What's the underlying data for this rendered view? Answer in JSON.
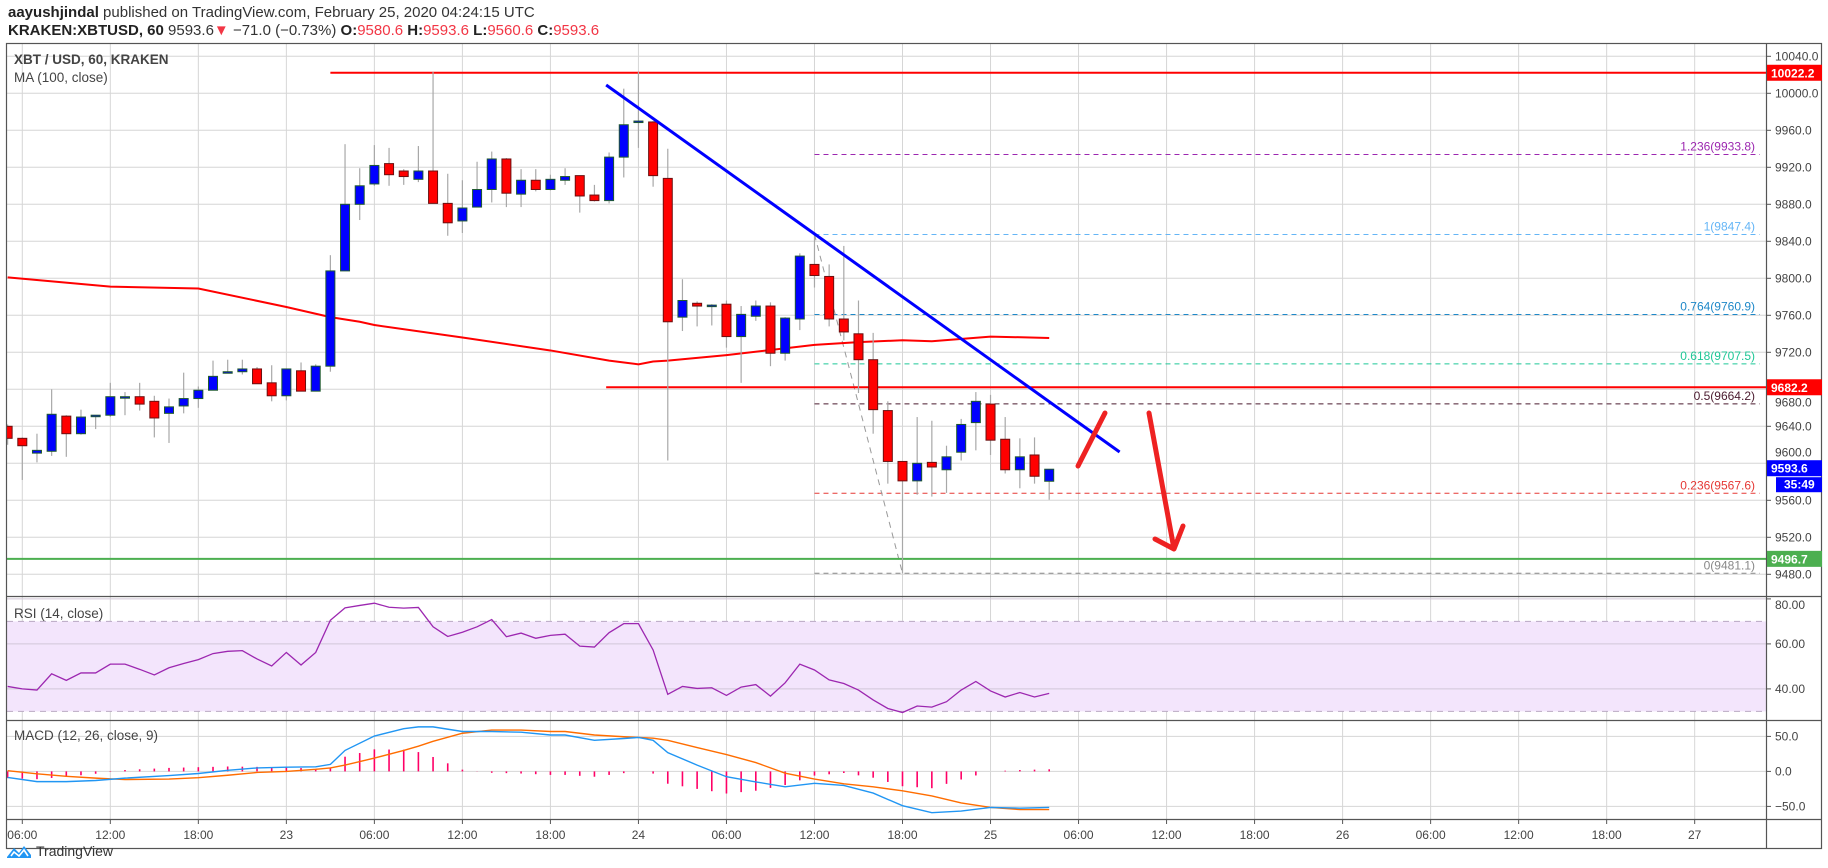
{
  "header": {
    "author": "aayushjindal",
    "published": "published on TradingView.com, February 25, 2020 04:24:15 UTC",
    "symbol": "KRAKEN:XBTUSD, 60",
    "last": "9593.6",
    "change": "−71.0 (−0.73%)",
    "o_label": "O:",
    "o": "9580.6",
    "h_label": "H:",
    "h": "9593.6",
    "l_label": "L:",
    "l": "9560.6",
    "c_label": "C:",
    "c": "9593.6",
    "down_color": "#f23645"
  },
  "legend": {
    "title": "XBT / USD, 60, KRAKEN",
    "ma": "MA (100, close)",
    "rsi": "RSI (14, close)",
    "macd": "MACD (12, 26, close, 9)"
  },
  "branding": {
    "logo_text": "TradingView"
  },
  "chart_data": {
    "type": "candlestick",
    "title": "XBT / USD, 60, KRAKEN",
    "interval_minutes": 60,
    "x_origin": "Feb 22 06:00",
    "first_candle_hour": -1,
    "ylim": [
      9460,
      10050
    ],
    "colors": {
      "up": "#0000ff",
      "down": "#ff0000",
      "ma": "#ff0000",
      "rsi": "#9c27b0",
      "macd": "#2196f3",
      "signal": "#ff6d00",
      "hist": "#ff0066"
    },
    "candles": [
      [
        9640,
        9642,
        9620,
        9627
      ],
      [
        9627,
        9628,
        9582,
        9619
      ],
      [
        9611,
        9632,
        9601,
        9614
      ],
      [
        9613,
        9680,
        9608,
        9653
      ],
      [
        9651,
        9652,
        9607,
        9632
      ],
      [
        9632,
        9658,
        9631,
        9650
      ],
      [
        9652,
        9652,
        9637,
        9652
      ],
      [
        9652,
        9687,
        9650,
        9672
      ],
      [
        9672,
        9677,
        9652,
        9672
      ],
      [
        9672,
        9687,
        9657,
        9664
      ],
      [
        9667,
        9673,
        9628,
        9649
      ],
      [
        9654,
        9670,
        9622,
        9661
      ],
      [
        9662,
        9698,
        9654,
        9670
      ],
      [
        9670,
        9683,
        9660,
        9679
      ],
      [
        9679,
        9711,
        9679,
        9694
      ],
      [
        9699,
        9712,
        9699,
        9699
      ],
      [
        9699,
        9712,
        9696,
        9702
      ],
      [
        9702,
        9704,
        9686,
        9686
      ],
      [
        9687,
        9706,
        9667,
        9673
      ],
      [
        9673,
        9702,
        9668,
        9702
      ],
      [
        9700,
        9709,
        9678,
        9678
      ],
      [
        9678,
        9707,
        9678,
        9705
      ],
      [
        9705,
        9825,
        9699,
        9808
      ],
      [
        9808,
        9945,
        9808,
        9880
      ],
      [
        9880,
        9919,
        9863,
        9900
      ],
      [
        9902,
        9944,
        9900,
        9922
      ],
      [
        9924,
        9941,
        9900,
        9912
      ],
      [
        9916,
        9918,
        9901,
        9910
      ],
      [
        9907,
        9943,
        9904,
        9916
      ],
      [
        9916,
        10023,
        9881,
        9881
      ],
      [
        9881,
        9913,
        9846,
        9860
      ],
      [
        9862,
        9906,
        9849,
        9876
      ],
      [
        9877,
        9926,
        9877,
        9896
      ],
      [
        9896,
        9937,
        9882,
        9929
      ],
      [
        9929,
        9930,
        9877,
        9892
      ],
      [
        9891,
        9918,
        9877,
        9906
      ],
      [
        9906,
        9918,
        9894,
        9896
      ],
      [
        9896,
        9912,
        9895,
        9907
      ],
      [
        9906,
        9919,
        9901,
        9910
      ],
      [
        9911,
        9911,
        9871,
        9889
      ],
      [
        9890,
        9901,
        9883,
        9884
      ],
      [
        9884,
        9936,
        9881,
        9931
      ],
      [
        9931,
        10005,
        9909,
        9966
      ],
      [
        9969,
        10023,
        9941,
        9970
      ],
      [
        9969,
        9970,
        9899,
        9911
      ],
      [
        9908,
        9940,
        9603,
        9753
      ],
      [
        9758,
        9799,
        9743,
        9776
      ],
      [
        9773,
        9775,
        9748,
        9770
      ],
      [
        9770,
        9772,
        9749,
        9771
      ],
      [
        9772,
        9776,
        9725,
        9737
      ],
      [
        9737,
        9770,
        9687,
        9761
      ],
      [
        9759,
        9776,
        9754,
        9770
      ],
      [
        9770,
        9774,
        9705,
        9719
      ],
      [
        9719,
        9758,
        9711,
        9757
      ],
      [
        9756,
        9827,
        9744,
        9824
      ],
      [
        9815,
        9847.4,
        9790,
        9803
      ],
      [
        9802,
        9815,
        9748,
        9756
      ],
      [
        9756,
        9835,
        9733,
        9742
      ],
      [
        9740,
        9776,
        9676,
        9712
      ],
      [
        9712,
        9741,
        9632,
        9658
      ],
      [
        9657,
        9667,
        9578,
        9602
      ],
      [
        9602,
        9602,
        9481.1,
        9581
      ],
      [
        9581,
        9650,
        9566,
        9600
      ],
      [
        9601,
        9646,
        9564,
        9596
      ],
      [
        9593,
        9619,
        9568,
        9607
      ],
      [
        9612,
        9648,
        9603,
        9642
      ],
      [
        9644,
        9677,
        9614,
        9667
      ],
      [
        9664,
        9674,
        9609,
        9625
      ],
      [
        9626,
        9650,
        9589,
        9593
      ],
      [
        9593,
        9627,
        9573,
        9607
      ],
      [
        9609,
        9628,
        9578,
        9586
      ],
      [
        9580.6,
        9593.6,
        9560.6,
        9593.6
      ]
    ],
    "ma_100": [
      [
        -1,
        9801
      ],
      [
        6,
        9791
      ],
      [
        12,
        9789
      ],
      [
        18,
        9769
      ],
      [
        21,
        9758
      ],
      [
        23,
        9753
      ],
      [
        24,
        9749.5
      ],
      [
        30,
        9736
      ],
      [
        36,
        9722
      ],
      [
        40,
        9711
      ],
      [
        42,
        9707
      ],
      [
        43,
        9710
      ],
      [
        44,
        9711
      ],
      [
        48,
        9717
      ],
      [
        54,
        9728
      ],
      [
        57,
        9731
      ],
      [
        60,
        9733
      ],
      [
        62,
        9732
      ],
      [
        66,
        9737
      ],
      [
        70,
        9735.5
      ]
    ],
    "horizontal_levels": [
      {
        "price": 10022.2,
        "label": "10022.2",
        "color": "#ff0000",
        "from_hour": 21
      },
      {
        "price": 9682.2,
        "label": "9682.2",
        "color": "#ff0000",
        "from_hour": 39.8
      },
      {
        "price": 9496.7,
        "label": "9496.7",
        "color": "#4caf50",
        "from_hour": -1.2
      }
    ],
    "last_price": {
      "label": "9593.6",
      "countdown": "35:49",
      "color": "#0000ff"
    },
    "trendline": {
      "from": [
        39.8,
        10009
      ],
      "to": [
        74.8,
        9612.2
      ],
      "color": "#0000ff"
    },
    "fibonacci": {
      "from": [
        54,
        9847.4
      ],
      "to": [
        60,
        9481.1
      ],
      "levels": [
        {
          "ratio": 1.236,
          "price": 9933.8,
          "label": "1.236(9933.8)",
          "color": "#9c27b0"
        },
        {
          "ratio": 1,
          "price": 9847.4,
          "label": "1(9847.4)",
          "color": "#64b5f6"
        },
        {
          "ratio": 0.764,
          "price": 9760.9,
          "label": "0.764(9760.9)",
          "color": "#1e88c8"
        },
        {
          "ratio": 0.618,
          "price": 9707.5,
          "label": "0.618(9707.5)",
          "color": "#1fc796"
        },
        {
          "ratio": 0.5,
          "price": 9664.2,
          "label": "0.5(9664.2)",
          "color": "#4a1a2e"
        },
        {
          "ratio": 0.236,
          "price": 9567.6,
          "label": "0.236(9567.6)",
          "color": "#e53935"
        },
        {
          "ratio": 0,
          "price": 9481.1,
          "label": "0(9481.1)",
          "color": "#888888"
        }
      ]
    },
    "price_axis": {
      "ticks": [
        "10040.0",
        "10000.0",
        "9960.0",
        "9920.0",
        "9880.0",
        "9840.0",
        "9800.0",
        "9760.0",
        "9720.0",
        "9680.0",
        "9640.0",
        "9600.0",
        "9560.0",
        "9520.0",
        "9480.0"
      ],
      "values": [
        10040,
        10000,
        9960,
        9920,
        9880,
        9840,
        9800,
        9760,
        9720,
        9680,
        9640,
        9600,
        9560,
        9520,
        9480
      ]
    },
    "time_axis": {
      "labels": [
        "06:00",
        "12:00",
        "18:00",
        "23",
        "06:00",
        "12:00",
        "18:00",
        "24",
        "06:00",
        "12:00",
        "18:00",
        "25",
        "06:00",
        "12:00",
        "18:00",
        "26",
        "06:00",
        "12:00",
        "18:00",
        "27"
      ],
      "hours": [
        0,
        6,
        12,
        18,
        24,
        30,
        36,
        42,
        48,
        54,
        60,
        66,
        72,
        78,
        84,
        90,
        96,
        102,
        108,
        114
      ]
    },
    "rsi": {
      "ylim": [
        25,
        82
      ],
      "band": [
        30,
        70
      ],
      "ticks": [
        "80.00",
        "60.00",
        "40.00"
      ],
      "tick_values": [
        80,
        60,
        40
      ],
      "values": [
        41.1,
        40,
        39.5,
        46.7,
        43.8,
        47.1,
        47.1,
        51,
        51,
        48.7,
        46.2,
        49.4,
        51.3,
        53,
        55.7,
        56.7,
        57,
        53.3,
        50.2,
        56.2,
        50.6,
        56.2,
        70.5,
        76,
        77.1,
        78.1,
        76.3,
        75.9,
        76.2,
        67.6,
        63.3,
        65.2,
        67.6,
        70.8,
        63.2,
        64.8,
        62.5,
        63.8,
        64.3,
        59,
        58.6,
        65,
        69,
        69,
        57.3,
        37.6,
        41.1,
        40.2,
        40.5,
        37.1,
        40.8,
        41.9,
        36.8,
        42.7,
        51,
        48.4,
        44,
        42.4,
        39.5,
        35.1,
        31.3,
        29.5,
        32.4,
        31.9,
        34.3,
        39.5,
        43.3,
        39.1,
        36.4,
        38.4,
        36.4,
        38
      ]
    },
    "macd": {
      "ticks": [
        "50.0",
        "0.0",
        "−50.0"
      ],
      "tick_values": [
        50,
        0,
        -50
      ],
      "points": [
        [
          -1,
          -8.6,
          1
        ],
        [
          1,
          -14.6,
          -3.5
        ],
        [
          3,
          -14.6,
          -7
        ],
        [
          5,
          -13,
          -9.6
        ],
        [
          7,
          -9.6,
          -11.6
        ],
        [
          10,
          -6,
          -11
        ],
        [
          12,
          -3,
          -9
        ],
        [
          14,
          1.5,
          -5.5
        ],
        [
          16,
          5,
          -1.5
        ],
        [
          18,
          6,
          0
        ],
        [
          20,
          6.6,
          3
        ],
        [
          21,
          10,
          5
        ],
        [
          22,
          30,
          9
        ],
        [
          24,
          50.5,
          19
        ],
        [
          26,
          61,
          30
        ],
        [
          27,
          63.6,
          36
        ],
        [
          28,
          63.6,
          43
        ],
        [
          30,
          57,
          54.5
        ],
        [
          32,
          57,
          59
        ],
        [
          34,
          56,
          59
        ],
        [
          36,
          52,
          57
        ],
        [
          37,
          52,
          57
        ],
        [
          39,
          44.4,
          52
        ],
        [
          41,
          47,
          49.5
        ],
        [
          42,
          48.5,
          48.5
        ],
        [
          43,
          44.4,
          47.5
        ],
        [
          44,
          26.8,
          44.4
        ],
        [
          46,
          9,
          34
        ],
        [
          48,
          -7.6,
          24
        ],
        [
          50,
          -15,
          12.6
        ],
        [
          52,
          -22,
          -2.5
        ],
        [
          54,
          -17,
          -11
        ],
        [
          56,
          -20,
          -17.7
        ],
        [
          58,
          -31,
          -22
        ],
        [
          60,
          -49,
          -27.8
        ],
        [
          62,
          -59,
          -35
        ],
        [
          64,
          -56.6,
          -45
        ],
        [
          66,
          -51.5,
          -51.5
        ],
        [
          68,
          -52.5,
          -54.5
        ],
        [
          70,
          -51.5,
          -54.5
        ]
      ]
    }
  }
}
